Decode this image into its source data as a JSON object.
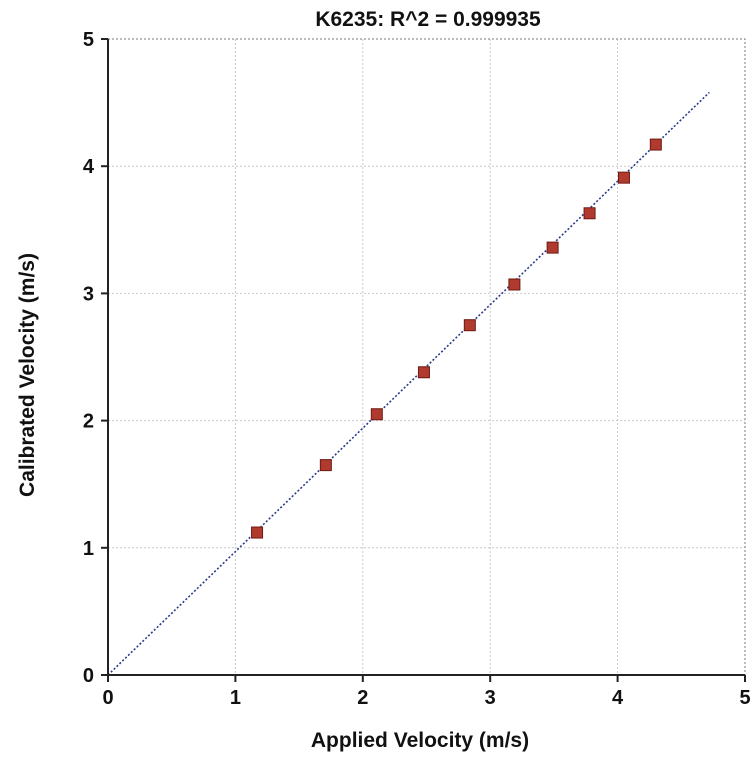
{
  "chart_data": {
    "type": "scatter",
    "title": "K6235: R^2 = 0.999935",
    "xlabel": "Applied Velocity (m/s)",
    "ylabel": "Calibrated Velocity (m/s)",
    "xlim": [
      0,
      5
    ],
    "ylim": [
      0,
      5
    ],
    "xticks": [
      "0",
      "1",
      "2",
      "3",
      "4",
      "5"
    ],
    "yticks": [
      "0",
      "1",
      "2",
      "3",
      "4",
      "5"
    ],
    "grid": true,
    "series": [
      {
        "marker": "square",
        "color": "#b03a2e",
        "x": [
          1.17,
          1.71,
          2.11,
          2.48,
          2.84,
          3.19,
          3.49,
          3.78,
          4.05,
          4.3
        ],
        "y": [
          1.12,
          1.65,
          2.05,
          2.38,
          2.75,
          3.07,
          3.36,
          3.63,
          3.91,
          4.17
        ]
      }
    ],
    "fit_line": {
      "x": [
        0,
        4.72
      ],
      "y": [
        0,
        4.58
      ],
      "color": "#2b3a8c",
      "style": "dotted"
    }
  }
}
